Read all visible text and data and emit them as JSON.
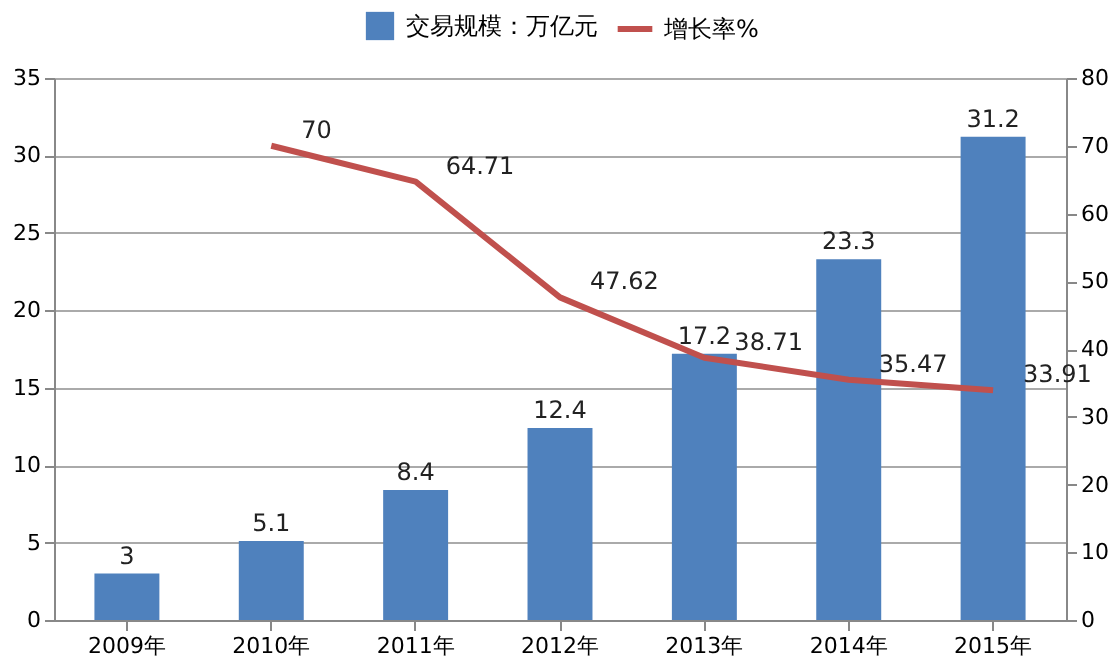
{
  "chart_data": {
    "type": "bar",
    "categories": [
      "2009年",
      "2010年",
      "2011年",
      "2012年",
      "2013年",
      "2014年",
      "2015年"
    ],
    "series": [
      {
        "name": "交易规模：万亿元",
        "color": "#4f81bd",
        "values": [
          3,
          5.1,
          8.4,
          12.4,
          17.2,
          23.3,
          31.2
        ]
      },
      {
        "name": "增长率%",
        "type": "line",
        "axis": "y2",
        "color": "#c0504d",
        "values": [
          null,
          70,
          64.71,
          47.62,
          38.71,
          35.47,
          33.91
        ]
      }
    ],
    "ylim": [
      0,
      35
    ],
    "yticks": [
      0,
      5,
      10,
      15,
      20,
      25,
      30,
      35
    ],
    "y2lim": [
      0,
      80
    ],
    "y2ticks": [
      0,
      10,
      20,
      30,
      40,
      50,
      60,
      70,
      80
    ],
    "grid": "y",
    "legend": "top",
    "data_labels": true
  }
}
